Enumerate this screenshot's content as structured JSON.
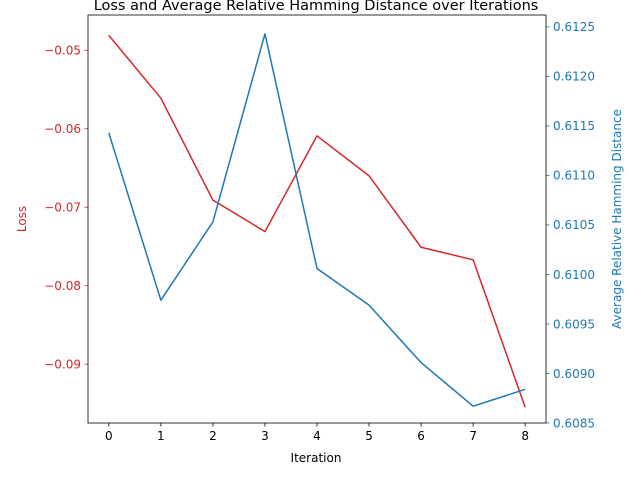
{
  "chart_data": {
    "type": "line",
    "title": "Loss and Average Relative Hamming Distance over Iterations",
    "xlabel": "Iteration",
    "x": [
      0,
      1,
      2,
      3,
      4,
      5,
      6,
      7,
      8
    ],
    "xlim": [
      -0.4,
      8.4
    ],
    "xticks": [
      "0",
      "1",
      "2",
      "3",
      "4",
      "5",
      "6",
      "7",
      "8"
    ],
    "left_axis": {
      "label": "Loss",
      "color": "#d62728",
      "ylim": [
        -0.0975,
        -0.0455
      ],
      "ticks": [
        -0.05,
        -0.06,
        -0.07,
        -0.08,
        -0.09
      ],
      "tick_labels": [
        "−0.05",
        "−0.06",
        "−0.07",
        "−0.08",
        "−0.09"
      ]
    },
    "right_axis": {
      "label": "Average Relative Hamming Distance",
      "color": "#1f77b4",
      "ylim": [
        0.6085,
        0.61262
      ],
      "ticks": [
        0.6085,
        0.609,
        0.6095,
        0.61,
        0.6105,
        0.611,
        0.6115,
        0.612,
        0.6125
      ],
      "tick_labels": [
        "0.6085",
        "0.6090",
        "0.6095",
        "0.6100",
        "0.6105",
        "0.6110",
        "0.6115",
        "0.6120",
        "0.6125"
      ]
    },
    "series": [
      {
        "axis": "left",
        "color": "#d62728",
        "values": [
          -0.0481,
          -0.0561,
          -0.0691,
          -0.0731,
          -0.0609,
          -0.066,
          -0.0751,
          -0.0767,
          -0.0955
        ]
      },
      {
        "axis": "right",
        "color": "#1f77b4",
        "values": [
          0.61143,
          0.60974,
          0.61053,
          0.61243,
          0.61006,
          0.60969,
          0.60911,
          0.60867,
          0.60884
        ]
      }
    ],
    "grid": false,
    "legend": "none"
  }
}
